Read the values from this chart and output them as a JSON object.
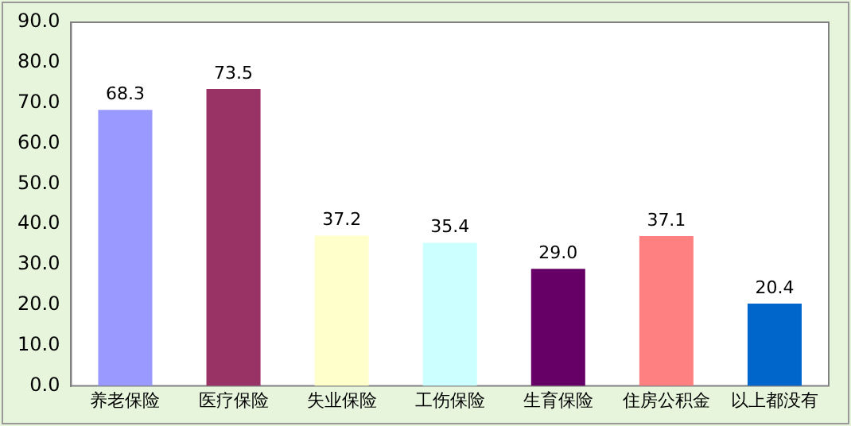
{
  "chart_data": {
    "type": "bar",
    "categories": [
      "养老保险",
      "医疗保险",
      "失业保险",
      "工伤保险",
      "生育保险",
      "住房公积金",
      "以上都没有"
    ],
    "values": [
      68.3,
      73.5,
      37.2,
      35.4,
      29.0,
      37.1,
      20.4
    ],
    "value_labels": [
      "68.3",
      "73.5",
      "37.2",
      "35.4",
      "29.0",
      "37.1",
      "20.4"
    ],
    "colors": [
      "#9999ff",
      "#993366",
      "#ffffcc",
      "#ccffff",
      "#660066",
      "#ff8080",
      "#0066cc"
    ],
    "ylim": [
      0,
      90
    ],
    "yticks": [
      {
        "value": 0,
        "label": "0.0"
      },
      {
        "value": 10,
        "label": "10.0"
      },
      {
        "value": 20,
        "label": "20.0"
      },
      {
        "value": 30,
        "label": "30.0"
      },
      {
        "value": 40,
        "label": "40.0"
      },
      {
        "value": 50,
        "label": "50.0"
      },
      {
        "value": 60,
        "label": "60.0"
      },
      {
        "value": 70,
        "label": "70.0"
      },
      {
        "value": 80,
        "label": "80.0"
      },
      {
        "value": 90,
        "label": "90.0"
      }
    ],
    "grid": false,
    "legend": false
  }
}
